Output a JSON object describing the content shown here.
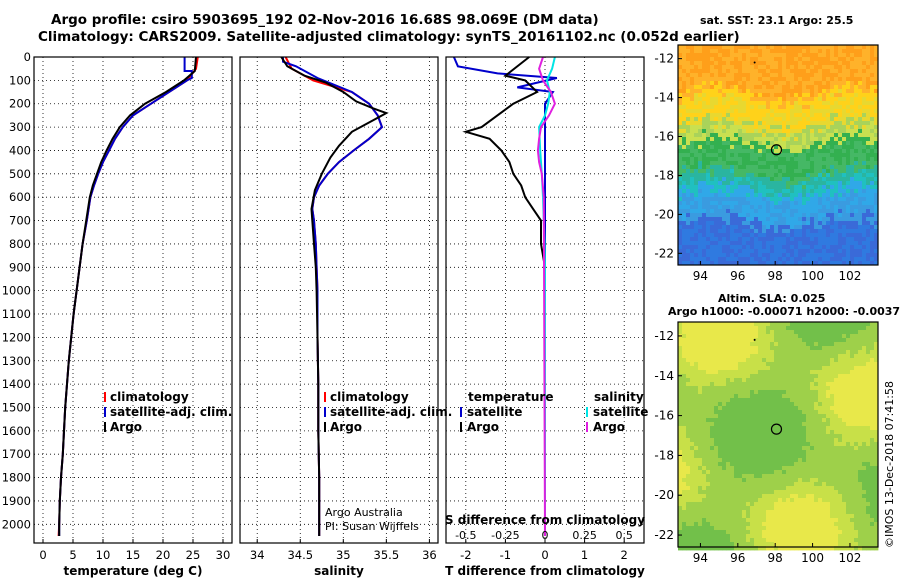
{
  "header": {
    "title_line1": "Argo profile: csiro 5903695_192 02-Nov-2016 16.68S 98.069E (DM data)",
    "title_line2": "Climatology: CARS2009. Satellite-adjusted climatology: synTS_20161102.nc (0.052d earlier)"
  },
  "colors": {
    "climatology": "#ff0000",
    "satellite": "#0000cc",
    "argo": "#000000",
    "satellite_salinity": "#00e5e5",
    "argo_salinity": "#e020e0"
  },
  "credits": {
    "line1": "Argo Australia",
    "line2": "PI: Susan Wijffels",
    "stamp": "©IMOS 13-Dec-2018 07:41:58"
  },
  "sst_map": {
    "title": "sat. SST: 23.1 Argo: 25.5",
    "xticks": [
      "94",
      "96",
      "98",
      "100",
      "102"
    ],
    "yticks": [
      "-12",
      "-14",
      "-16",
      "-18",
      "-20",
      "-22"
    ],
    "xlim": [
      92.8,
      103.5
    ],
    "ylim": [
      -22.6,
      -11.3
    ],
    "profile_lon": 98.069,
    "profile_lat": -16.68
  },
  "sla_map": {
    "title1": "Altim. SLA: 0.025",
    "title2": "Argo h1000: -0.00071 h2000: -0.0037",
    "xticks": [
      "94",
      "96",
      "98",
      "100",
      "102"
    ],
    "yticks": [
      "-12",
      "-14",
      "-16",
      "-18",
      "-20",
      "-22"
    ],
    "xlim": [
      92.8,
      103.5
    ],
    "ylim": [
      -22.6,
      -11.3
    ],
    "profile_lon": 98.069,
    "profile_lat": -16.68
  },
  "chart_data": [
    {
      "type": "line",
      "name": "temperature-panel",
      "xlabel": "temperature (deg C)",
      "xlim": [
        -1.5,
        31.5
      ],
      "ylim": [
        2080,
        0
      ],
      "xticks": [
        0,
        5,
        10,
        15,
        20,
        25,
        30
      ],
      "yticks": [
        0,
        100,
        200,
        300,
        400,
        500,
        600,
        700,
        800,
        900,
        1000,
        1100,
        1200,
        1300,
        1400,
        1500,
        1600,
        1700,
        1800,
        1900,
        2000
      ],
      "grid": true,
      "legend": {
        "placement": "lower-right",
        "items": [
          "climatology",
          "satellite-adj. clim.",
          "Argo"
        ]
      },
      "series": [
        {
          "name": "climatology",
          "color": "#ff0000",
          "points": [
            [
              25.8,
              0
            ],
            [
              25.5,
              50
            ],
            [
              24,
              100
            ],
            [
              21,
              150
            ],
            [
              18,
              200
            ],
            [
              15,
              250
            ],
            [
              13.3,
              300
            ],
            [
              12,
              350
            ],
            [
              11,
              400
            ],
            [
              10,
              450
            ],
            [
              9.2,
              500
            ],
            [
              8.5,
              550
            ],
            [
              7.9,
              600
            ],
            [
              7.3,
              700
            ],
            [
              6.6,
              800
            ],
            [
              6.1,
              900
            ],
            [
              5.6,
              1000
            ],
            [
              5.1,
              1100
            ],
            [
              4.7,
              1200
            ],
            [
              4.3,
              1300
            ],
            [
              4.0,
              1400
            ],
            [
              3.7,
              1500
            ],
            [
              3.5,
              1600
            ],
            [
              3.3,
              1700
            ],
            [
              3.0,
              1800
            ],
            [
              2.8,
              1900
            ],
            [
              2.7,
              2000
            ],
            [
              2.6,
              2050
            ]
          ]
        },
        {
          "name": "satellite-adj. clim.",
          "color": "#0000cc",
          "points": [
            [
              23.6,
              0
            ],
            [
              23.6,
              60
            ],
            [
              24.8,
              60
            ],
            [
              24.8,
              90
            ],
            [
              24,
              100
            ],
            [
              21,
              150
            ],
            [
              18,
              200
            ],
            [
              15,
              250
            ],
            [
              13.3,
              300
            ],
            [
              12,
              350
            ],
            [
              11,
              400
            ],
            [
              10,
              450
            ],
            [
              9.2,
              500
            ],
            [
              8.5,
              550
            ],
            [
              7.9,
              600
            ],
            [
              7.3,
              700
            ],
            [
              6.6,
              800
            ],
            [
              6.1,
              900
            ],
            [
              5.6,
              1000
            ],
            [
              5.1,
              1100
            ],
            [
              4.7,
              1200
            ],
            [
              4.3,
              1300
            ],
            [
              4.0,
              1400
            ],
            [
              3.7,
              1500
            ],
            [
              3.5,
              1600
            ],
            [
              3.3,
              1700
            ],
            [
              3.0,
              1800
            ],
            [
              2.8,
              1900
            ],
            [
              2.7,
              2000
            ],
            [
              2.7,
              2050
            ]
          ]
        },
        {
          "name": "Argo",
          "color": "#000000",
          "points": [
            [
              25.5,
              0
            ],
            [
              25.3,
              60
            ],
            [
              23.5,
              100
            ],
            [
              20.5,
              150
            ],
            [
              17,
              200
            ],
            [
              14.5,
              250
            ],
            [
              12.8,
              300
            ],
            [
              11.6,
              350
            ],
            [
              10.6,
              400
            ],
            [
              9.7,
              450
            ],
            [
              9,
              500
            ],
            [
              8.3,
              550
            ],
            [
              7.8,
              600
            ],
            [
              7.2,
              700
            ],
            [
              6.6,
              800
            ],
            [
              6.1,
              900
            ],
            [
              5.6,
              1000
            ],
            [
              5.1,
              1100
            ],
            [
              4.7,
              1200
            ],
            [
              4.3,
              1300
            ],
            [
              4.0,
              1400
            ],
            [
              3.7,
              1500
            ],
            [
              3.5,
              1600
            ],
            [
              3.3,
              1700
            ],
            [
              3.0,
              1800
            ],
            [
              2.8,
              1900
            ],
            [
              2.7,
              2000
            ],
            [
              2.7,
              2050
            ]
          ]
        }
      ]
    },
    {
      "type": "line",
      "name": "salinity-panel",
      "xlabel": "salinity",
      "xlim": [
        33.8,
        36.1
      ],
      "ylim": [
        2080,
        0
      ],
      "xticks": [
        34,
        34.5,
        35,
        35.5,
        36
      ],
      "xticklabels": [
        "34",
        "34.5",
        "35",
        "35.5",
        "36"
      ],
      "grid": true,
      "legend": {
        "placement": "lower-right",
        "items": [
          "climatology",
          "satellite-adj. clim.",
          "Argo"
        ]
      },
      "series": [
        {
          "name": "climatology",
          "color": "#ff0000",
          "points": [
            [
              34.33,
              0
            ],
            [
              34.4,
              50
            ],
            [
              34.65,
              100
            ],
            [
              35.1,
              150
            ],
            [
              35.3,
              200
            ],
            [
              35.4,
              250
            ],
            [
              35.45,
              300
            ],
            [
              35.3,
              350
            ],
            [
              35.12,
              400
            ],
            [
              34.95,
              450
            ],
            [
              34.82,
              500
            ],
            [
              34.72,
              550
            ],
            [
              34.66,
              600
            ],
            [
              34.64,
              650
            ],
            [
              34.66,
              700
            ],
            [
              34.68,
              800
            ],
            [
              34.69,
              900
            ],
            [
              34.7,
              1000
            ],
            [
              34.7,
              1200
            ],
            [
              34.71,
              1400
            ],
            [
              34.71,
              1600
            ],
            [
              34.72,
              1800
            ],
            [
              34.72,
              2000
            ],
            [
              34.72,
              2050
            ]
          ]
        },
        {
          "name": "satellite-adj. clim.",
          "color": "#0000cc",
          "points": [
            [
              34.3,
              0
            ],
            [
              34.3,
              20
            ],
            [
              34.45,
              40
            ],
            [
              34.7,
              90
            ],
            [
              35.1,
              150
            ],
            [
              35.3,
              200
            ],
            [
              35.4,
              250
            ],
            [
              35.45,
              300
            ],
            [
              35.3,
              350
            ],
            [
              35.12,
              400
            ],
            [
              34.95,
              450
            ],
            [
              34.82,
              500
            ],
            [
              34.72,
              550
            ],
            [
              34.66,
              600
            ],
            [
              34.64,
              650
            ],
            [
              34.66,
              700
            ],
            [
              34.68,
              800
            ],
            [
              34.69,
              900
            ],
            [
              34.7,
              1000
            ],
            [
              34.7,
              1200
            ],
            [
              34.71,
              1400
            ],
            [
              34.71,
              1600
            ],
            [
              34.72,
              1800
            ],
            [
              34.72,
              2000
            ],
            [
              34.72,
              2050
            ]
          ]
        },
        {
          "name": "Argo",
          "color": "#000000",
          "points": [
            [
              34.28,
              0
            ],
            [
              34.35,
              40
            ],
            [
              34.55,
              80
            ],
            [
              34.8,
              110
            ],
            [
              35.0,
              150
            ],
            [
              35.15,
              190
            ],
            [
              35.35,
              220
            ],
            [
              35.5,
              240
            ],
            [
              35.35,
              270
            ],
            [
              35.1,
              320
            ],
            [
              34.95,
              380
            ],
            [
              34.85,
              430
            ],
            [
              34.75,
              500
            ],
            [
              34.67,
              570
            ],
            [
              34.63,
              650
            ],
            [
              34.64,
              700
            ],
            [
              34.66,
              800
            ],
            [
              34.68,
              900
            ],
            [
              34.69,
              1000
            ],
            [
              34.7,
              1200
            ],
            [
              34.71,
              1400
            ],
            [
              34.71,
              1600
            ],
            [
              34.72,
              1800
            ],
            [
              34.72,
              2000
            ],
            [
              34.72,
              2050
            ]
          ]
        }
      ]
    },
    {
      "type": "line",
      "name": "difference-panel",
      "xlabel": "T difference from climatology",
      "xlabel_top": "S difference from climatology",
      "xlim": [
        -2.5,
        2.5
      ],
      "ylim": [
        2080,
        0
      ],
      "xticks": [
        -2,
        -1,
        0,
        1,
        2
      ],
      "xticklabels": [
        "-2",
        "-1",
        "0",
        "1",
        "2"
      ],
      "s_ticks": [
        -0.5,
        -0.25,
        0,
        0.25,
        0.5
      ],
      "s_ticklabels": [
        "-0.5",
        "-0.25",
        "0",
        "0.25",
        "0.5"
      ],
      "grid": true,
      "legend_left": {
        "title": "temperature",
        "items": [
          "satellite",
          "Argo"
        ]
      },
      "legend_right": {
        "title": "salinity",
        "items": [
          "satellite",
          "Argo"
        ]
      },
      "series": [
        {
          "name": "temperature satellite",
          "color": "#0000cc",
          "points": [
            [
              -2.3,
              0
            ],
            [
              -2.2,
              40
            ],
            [
              -1.2,
              70
            ],
            [
              0.3,
              90
            ],
            [
              -0.7,
              130
            ],
            [
              0.2,
              150
            ],
            [
              0,
              200
            ],
            [
              0,
              2050
            ]
          ]
        },
        {
          "name": "temperature Argo",
          "color": "#000000",
          "points": [
            [
              -0.4,
              0
            ],
            [
              -1.0,
              80
            ],
            [
              -0.5,
              100
            ],
            [
              -0.2,
              150
            ],
            [
              -0.8,
              200
            ],
            [
              -1.6,
              300
            ],
            [
              -2.0,
              320
            ],
            [
              -1.4,
              350
            ],
            [
              -1.1,
              400
            ],
            [
              -0.9,
              450
            ],
            [
              -0.8,
              500
            ],
            [
              -0.6,
              550
            ],
            [
              -0.5,
              600
            ],
            [
              -0.3,
              650
            ],
            [
              -0.1,
              700
            ],
            [
              -0.1,
              800
            ],
            [
              0,
              900
            ],
            [
              0,
              2050
            ]
          ]
        },
        {
          "name": "salinity satellite",
          "color": "#00e5e5",
          "points": [
            [
              0.25,
              0
            ],
            [
              0.18,
              50
            ],
            [
              0.05,
              100
            ],
            [
              0.12,
              150
            ],
            [
              0.08,
              200
            ],
            [
              0,
              250
            ],
            [
              -0.15,
              300
            ],
            [
              -0.12,
              400
            ],
            [
              -0.08,
              500
            ],
            [
              -0.05,
              600
            ],
            [
              -0.03,
              700
            ],
            [
              -0.01,
              800
            ],
            [
              0,
              900
            ],
            [
              0,
              2050
            ]
          ]
        },
        {
          "name": "salinity Argo",
          "color": "#e020e0",
          "points": [
            [
              -0.05,
              0
            ],
            [
              -0.15,
              50
            ],
            [
              -0.05,
              100
            ],
            [
              0.15,
              150
            ],
            [
              0.25,
              200
            ],
            [
              0.1,
              250
            ],
            [
              -0.1,
              300
            ],
            [
              -0.15,
              350
            ],
            [
              -0.18,
              400
            ],
            [
              -0.15,
              450
            ],
            [
              -0.08,
              500
            ],
            [
              -0.03,
              600
            ],
            [
              0,
              2050
            ]
          ]
        }
      ]
    }
  ]
}
